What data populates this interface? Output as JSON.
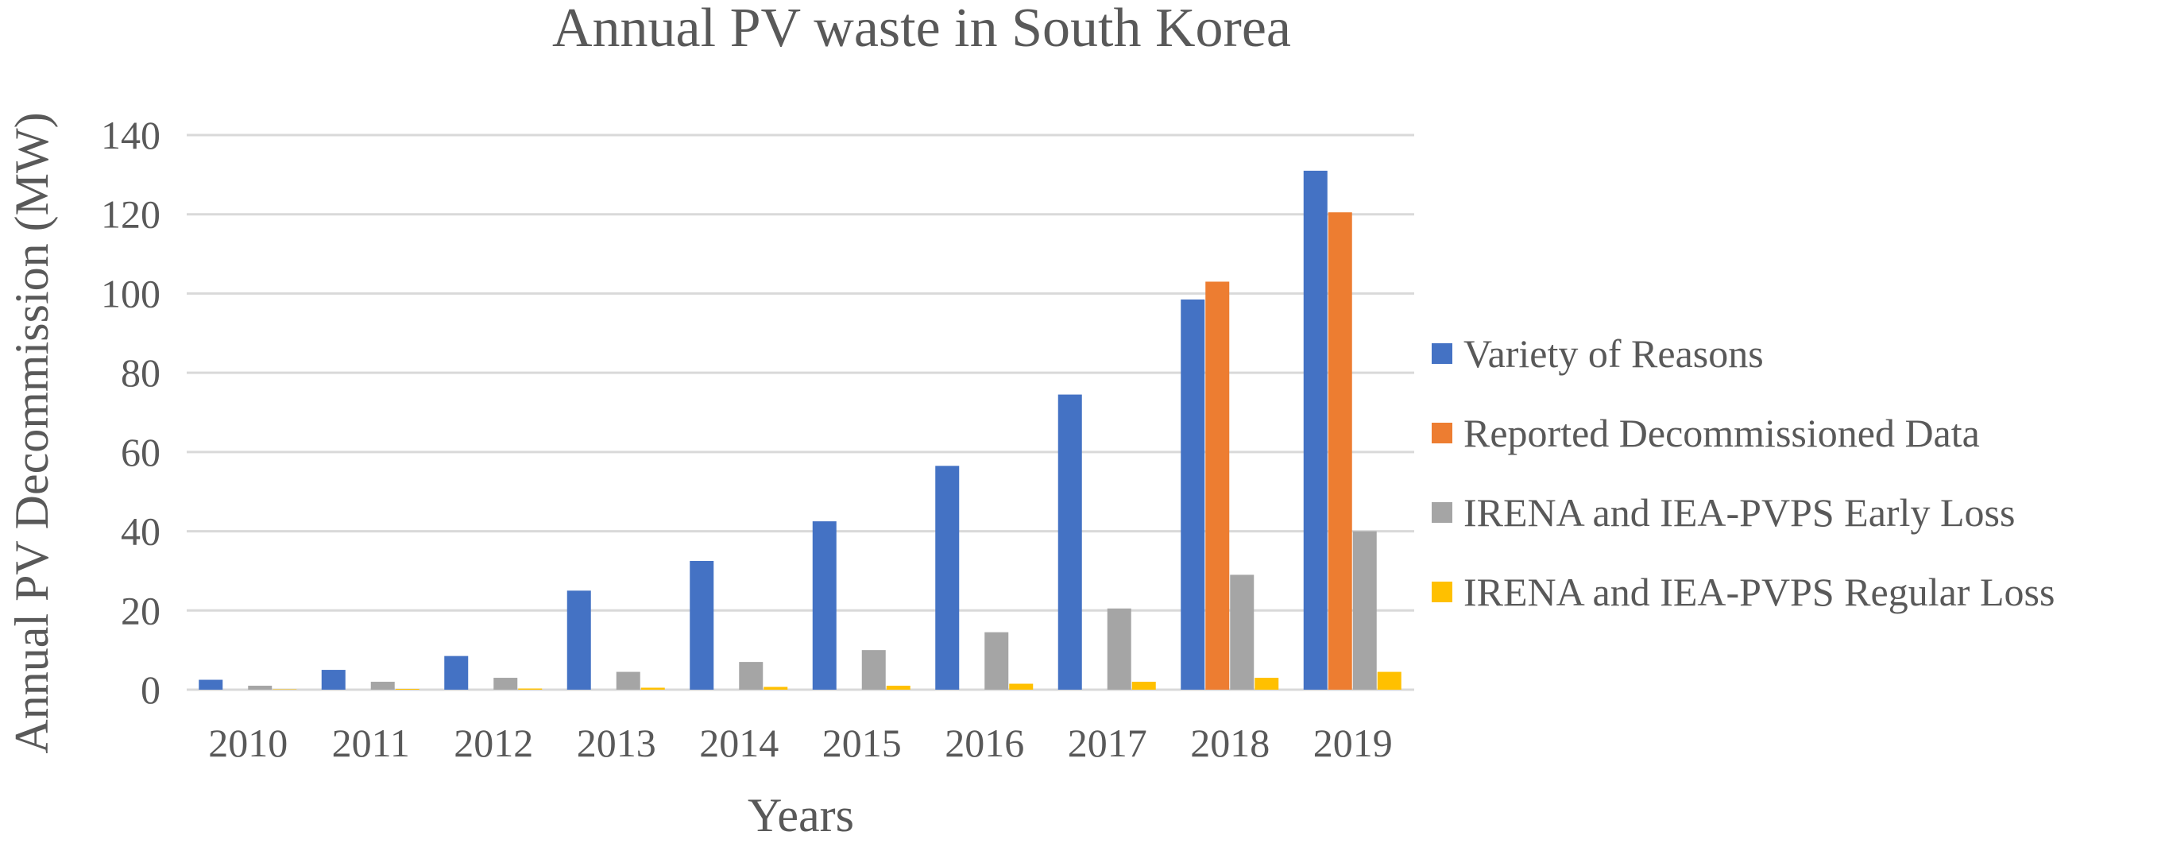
{
  "chart_data": {
    "type": "bar",
    "title": "Annual PV waste in South Korea",
    "xlabel": "Years",
    "ylabel": "Annual PV Decommission (MW)",
    "ylim": [
      0,
      140
    ],
    "yticks": [
      0,
      20,
      40,
      60,
      80,
      100,
      120,
      140
    ],
    "grid": true,
    "legend_position": "right",
    "categories": [
      "2010",
      "2011",
      "2012",
      "2013",
      "2014",
      "2015",
      "2016",
      "2017",
      "2018",
      "2019"
    ],
    "series": [
      {
        "name": "Variety of Reasons",
        "color": "#4472c4",
        "values": [
          2.5,
          5,
          8.5,
          25,
          32.5,
          42.5,
          56.5,
          74.5,
          98.5,
          131
        ]
      },
      {
        "name": "Reported Decommissioned Data",
        "color": "#ed7d31",
        "values": [
          null,
          null,
          null,
          null,
          null,
          null,
          null,
          null,
          103,
          120.5
        ]
      },
      {
        "name": "IRENA and IEA-PVPS Early Loss",
        "color": "#a5a5a5",
        "values": [
          1,
          2,
          3,
          4.5,
          7,
          10,
          14.5,
          20.5,
          29,
          40
        ]
      },
      {
        "name": "IRENA and IEA-PVPS Regular Loss",
        "color": "#ffc000",
        "values": [
          0.1,
          0.2,
          0.3,
          0.5,
          0.7,
          1,
          1.5,
          2,
          3,
          4.5
        ]
      }
    ]
  }
}
